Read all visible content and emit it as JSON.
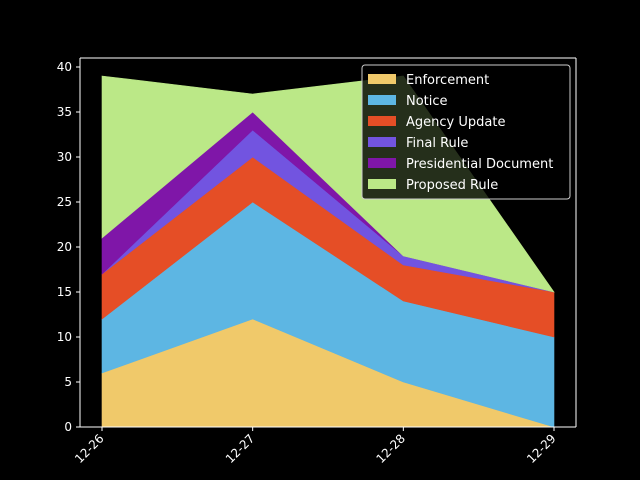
{
  "chart_data": {
    "type": "area",
    "stacked": true,
    "x": [
      "12-26",
      "12-27",
      "12-28",
      "12-29"
    ],
    "ylim": [
      0,
      41
    ],
    "yticks": [
      0,
      5,
      10,
      15,
      20,
      25,
      30,
      35,
      40
    ],
    "title": "",
    "xlabel": "",
    "ylabel": "",
    "legend_position": "top-right",
    "grid": false,
    "background": "#000000",
    "series": [
      {
        "name": "Enforcement",
        "color": "#f0c96a",
        "values": [
          6,
          12,
          5,
          0
        ]
      },
      {
        "name": "Notice",
        "color": "#5db6e3",
        "values": [
          6,
          13,
          9,
          10
        ]
      },
      {
        "name": "Agency Update",
        "color": "#e54e26",
        "values": [
          5,
          5,
          4,
          5
        ]
      },
      {
        "name": "Final Rule",
        "color": "#7254e0",
        "values": [
          0,
          3,
          1,
          0
        ]
      },
      {
        "name": "Presidential Document",
        "color": "#7f16a8",
        "values": [
          4,
          2,
          0,
          0
        ]
      },
      {
        "name": "Proposed Rule",
        "color": "#bbe887",
        "values": [
          18,
          2,
          20,
          0
        ]
      }
    ]
  }
}
